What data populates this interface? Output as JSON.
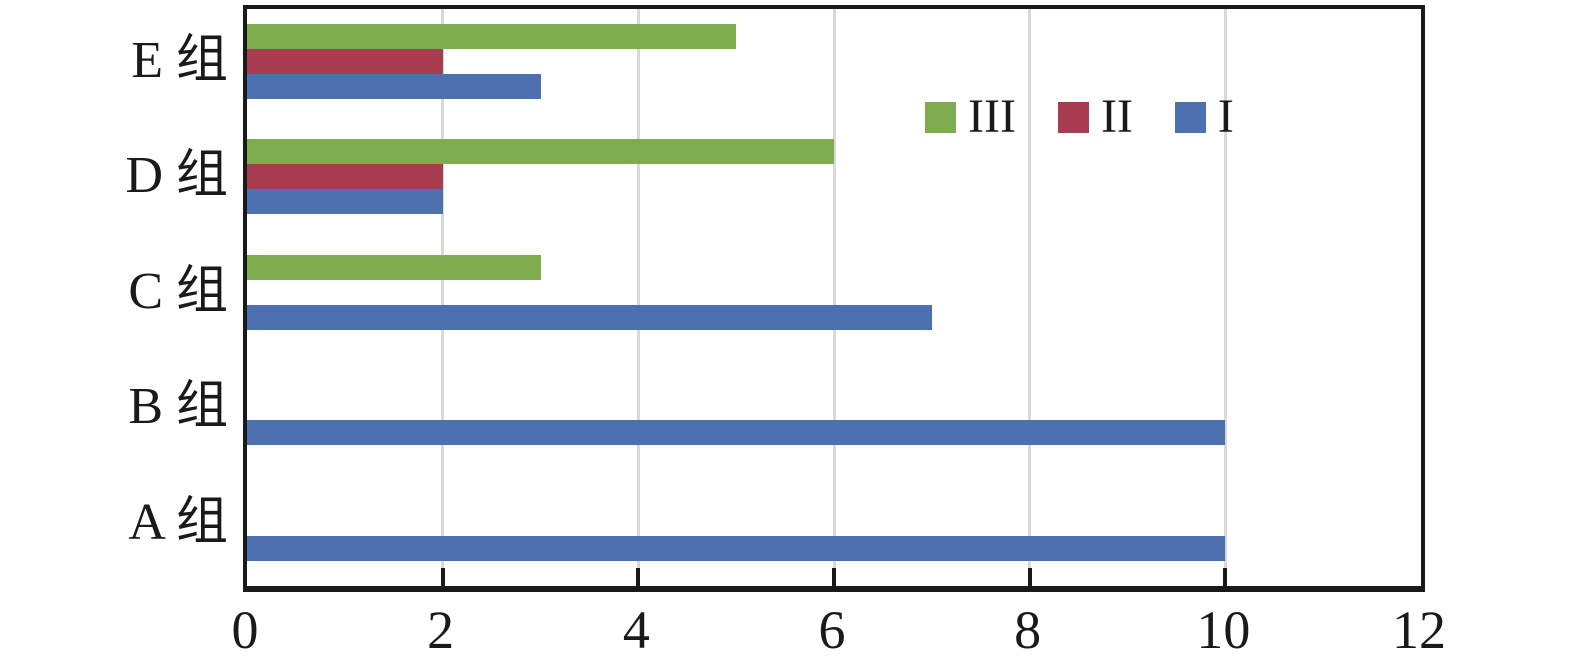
{
  "chart_data": {
    "type": "bar",
    "orientation": "horizontal",
    "title": "",
    "xlabel": "",
    "ylabel": "",
    "categories": [
      "E 组",
      "D 组",
      "C 组",
      "B 组",
      "A 组"
    ],
    "series": [
      {
        "name": "III",
        "color": "#7EAC4F",
        "values": [
          5,
          6,
          3,
          0,
          0
        ]
      },
      {
        "name": "II",
        "color": "#A73C50",
        "values": [
          2,
          2,
          0,
          0,
          0
        ]
      },
      {
        "name": "I",
        "color": "#4C71AE",
        "values": [
          3,
          2,
          7,
          10,
          10
        ]
      }
    ],
    "xlim": [
      0,
      12
    ],
    "x_ticks": [
      0,
      2,
      4,
      6,
      8,
      10,
      12
    ],
    "grid": "vertical-at-even-ticks",
    "legend": {
      "position": "top-right-inside",
      "entries": [
        "III",
        "II",
        "I"
      ]
    }
  },
  "colors": {
    "frame": "#1a1a1a",
    "gridline": "#d9d9d9",
    "tick": "#1a1a1a",
    "text": "#1a1a1a",
    "background": "#ffffff"
  }
}
